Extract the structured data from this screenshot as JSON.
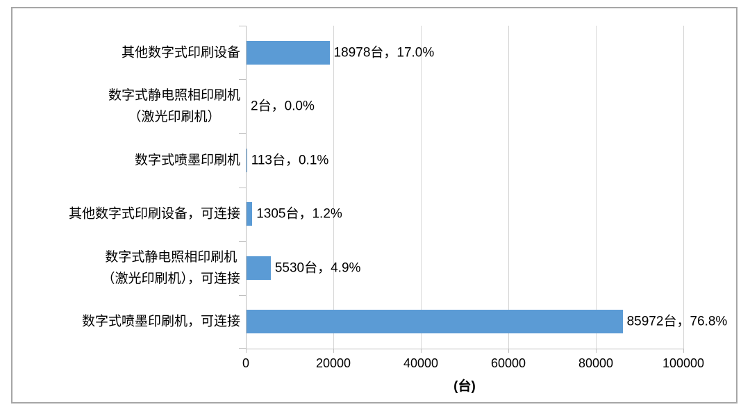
{
  "chart_data": {
    "type": "bar",
    "orientation": "horizontal",
    "title": "",
    "xlabel": "(台)",
    "ylabel": "",
    "xlim": [
      0,
      100000
    ],
    "grid": true,
    "legend": "none",
    "x_ticks": [
      "0",
      "20000",
      "40000",
      "60000",
      "80000",
      "100000"
    ],
    "x_tick_values": [
      0,
      20000,
      40000,
      60000,
      80000,
      100000
    ],
    "categories": [
      "其他数字式印刷设备",
      "数字式静电照相印刷机（激光印刷机）",
      "数字式喷墨印刷机",
      "其他数字式印刷设备，可连接",
      "数字式静电照相印刷机（激光印刷机），可连接",
      "数字式喷墨印刷机，可连接"
    ],
    "items": [
      {
        "label_lines": [
          "其他数字式印刷设备"
        ],
        "value": 18978,
        "percent": "17.0%",
        "data_label": "18978台，17.0%"
      },
      {
        "label_lines": [
          "数字式静电照相印刷机",
          "（激光印刷机）"
        ],
        "value": 2,
        "percent": "0.0%",
        "data_label": "2台，0.0%"
      },
      {
        "label_lines": [
          "数字式喷墨印刷机"
        ],
        "value": 113,
        "percent": "0.1%",
        "data_label": "113台，0.1%"
      },
      {
        "label_lines": [
          "其他数字式印刷设备，可连接"
        ],
        "value": 1305,
        "percent": "1.2%",
        "data_label": "1305台，1.2%"
      },
      {
        "label_lines": [
          "数字式静电照相印刷机",
          "（激光印刷机），可连接"
        ],
        "value": 5530,
        "percent": "4.9%",
        "data_label": "5530台，4.9%"
      },
      {
        "label_lines": [
          "数字式喷墨印刷机，可连接"
        ],
        "value": 85972,
        "percent": "76.8%",
        "data_label": "85972台，76.8%"
      }
    ],
    "colors": {
      "bar": "#5B9BD5",
      "gridline": "#D6D6D6",
      "axis": "#BFBFBF",
      "border": "#A6A6A6",
      "text": "#000000"
    }
  }
}
